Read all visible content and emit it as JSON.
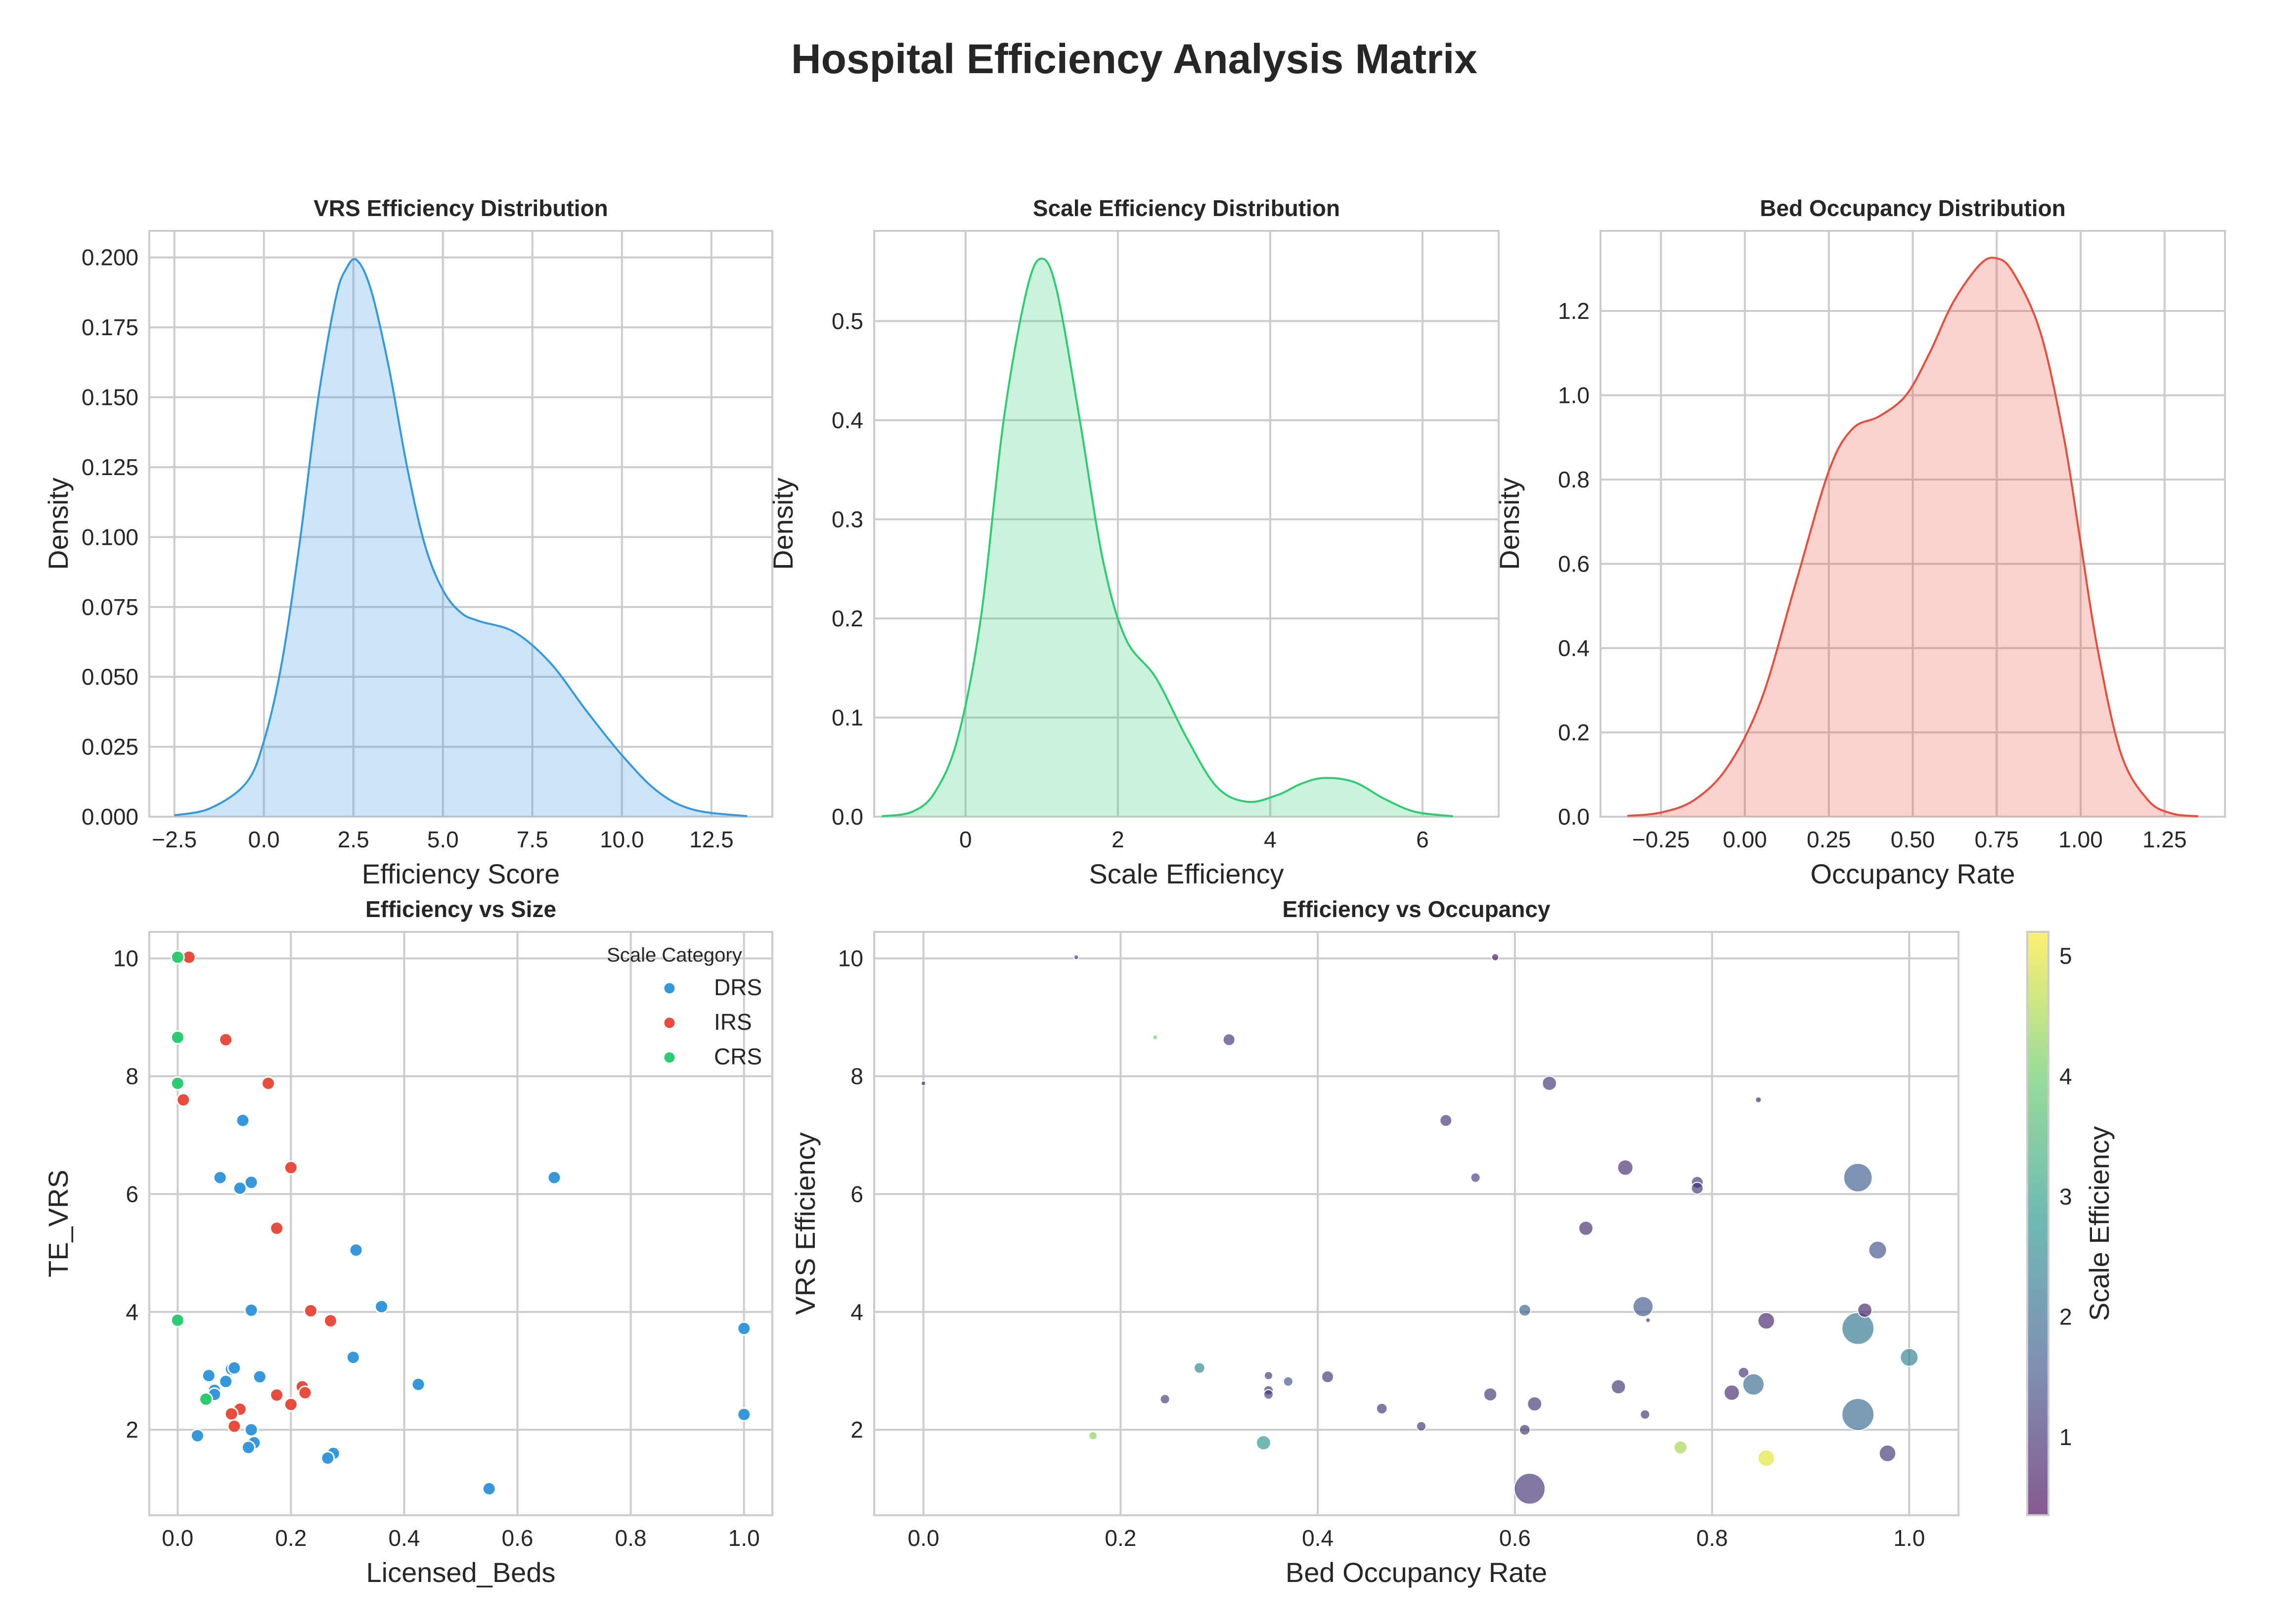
{
  "figure": {
    "title": "Hospital Efficiency Analysis Matrix"
  },
  "chart_data": [
    {
      "type": "area",
      "title": "VRS Efficiency Distribution",
      "xlabel": "Efficiency Score",
      "ylabel": "Density",
      "xlim": [
        -3.2,
        14.2
      ],
      "ylim": [
        0,
        0.2
      ],
      "xticks": [
        -2.5,
        0,
        2.5,
        5,
        7.5,
        10,
        12.5
      ],
      "xticklabels": [
        "−2.5",
        "0.0",
        "2.5",
        "5.0",
        "7.5",
        "10.0",
        "12.5"
      ],
      "yticks": [
        0,
        0.025,
        0.05,
        0.075,
        0.1,
        0.125,
        0.15,
        0.175,
        0.2
      ],
      "yticklabels": [
        "0.000",
        "0.025",
        "0.050",
        "0.075",
        "0.100",
        "0.125",
        "0.150",
        "0.175",
        "0.200"
      ],
      "color": "#3498db",
      "x": [
        -2.5,
        -1.5,
        -0.5,
        0,
        0.5,
        1,
        1.5,
        2,
        2.3,
        2.6,
        3,
        3.5,
        4,
        4.5,
        5,
        5.5,
        6,
        7,
        8,
        9,
        10,
        11,
        12,
        13.5
      ],
      "y": [
        0.0005,
        0.003,
        0.012,
        0.027,
        0.055,
        0.098,
        0.148,
        0.185,
        0.196,
        0.199,
        0.188,
        0.16,
        0.125,
        0.097,
        0.081,
        0.073,
        0.07,
        0.066,
        0.055,
        0.038,
        0.022,
        0.009,
        0.0025,
        0.0002
      ]
    },
    {
      "type": "area",
      "title": "Scale Efficiency Distribution",
      "xlabel": "Scale Efficiency",
      "ylabel": "Density",
      "xlim": [
        -1.2,
        7.0
      ],
      "ylim": [
        0,
        0.6
      ],
      "xticks": [
        0,
        2,
        4,
        6
      ],
      "xticklabels": [
        "0",
        "2",
        "4",
        "6"
      ],
      "yticks": [
        0,
        0.1,
        0.2,
        0.3,
        0.4,
        0.5
      ],
      "yticklabels": [
        "0.0",
        "0.1",
        "0.2",
        "0.3",
        "0.4",
        "0.5"
      ],
      "color": "#2ecc71",
      "x": [
        -1.1,
        -0.7,
        -0.4,
        -0.1,
        0.2,
        0.5,
        0.8,
        1.0,
        1.2,
        1.5,
        1.8,
        2.1,
        2.5,
        2.9,
        3.3,
        3.7,
        4.1,
        4.4,
        4.7,
        5.1,
        5.5,
        5.9,
        6.4
      ],
      "y": [
        0.0005,
        0.005,
        0.025,
        0.08,
        0.2,
        0.4,
        0.53,
        0.563,
        0.53,
        0.4,
        0.26,
        0.18,
        0.14,
        0.08,
        0.03,
        0.015,
        0.022,
        0.033,
        0.039,
        0.035,
        0.018,
        0.005,
        0.0005
      ]
    },
    {
      "type": "area",
      "title": "Bed Occupancy Distribution",
      "xlabel": "Occupancy Rate",
      "ylabel": "Density",
      "xlim": [
        -0.43,
        1.43
      ],
      "ylim": [
        0,
        1.4
      ],
      "xticks": [
        -0.25,
        0,
        0.25,
        0.5,
        0.75,
        1.0,
        1.25
      ],
      "xticklabels": [
        "−0.25",
        "0.00",
        "0.25",
        "0.50",
        "0.75",
        "1.00",
        "1.25"
      ],
      "yticks": [
        0,
        0.2,
        0.4,
        0.6,
        0.8,
        1.0,
        1.2
      ],
      "yticklabels": [
        "0.0",
        "0.2",
        "0.4",
        "0.6",
        "0.8",
        "1.0",
        "1.2"
      ],
      "color": "#e74c3c",
      "x": [
        -0.35,
        -0.25,
        -0.15,
        -0.05,
        0.05,
        0.15,
        0.25,
        0.32,
        0.4,
        0.48,
        0.55,
        0.62,
        0.7,
        0.75,
        0.8,
        0.88,
        0.95,
        1.0,
        1.05,
        1.12,
        1.2,
        1.27,
        1.35
      ],
      "y": [
        0.002,
        0.01,
        0.04,
        0.12,
        0.28,
        0.55,
        0.82,
        0.92,
        0.95,
        1.0,
        1.1,
        1.22,
        1.31,
        1.325,
        1.29,
        1.15,
        0.9,
        0.65,
        0.4,
        0.15,
        0.04,
        0.008,
        0.001
      ]
    },
    {
      "type": "scatter",
      "title": "Efficiency vs Size",
      "xlabel": "Licensed_Beds",
      "ylabel": "TE_VRS",
      "xlim": [
        -0.05,
        1.05
      ],
      "ylim": [
        0.55,
        10.45
      ],
      "xticks": [
        0,
        0.2,
        0.4,
        0.6,
        0.8,
        1.0
      ],
      "xticklabels": [
        "0.0",
        "0.2",
        "0.4",
        "0.6",
        "0.8",
        "1.0"
      ],
      "yticks": [
        2,
        4,
        6,
        8,
        10
      ],
      "yticklabels": [
        "2",
        "4",
        "6",
        "8",
        "10"
      ],
      "legend": {
        "title": "Scale Category",
        "position": "top-right",
        "labels": [
          "DRS",
          "IRS",
          "CRS"
        ]
      },
      "series": [
        {
          "name": "DRS",
          "color": "#3498db",
          "x": [
            0.665,
            0.315,
            0.36,
            0.115,
            0.075,
            0.11,
            0.13,
            0.13,
            0.31,
            0.425,
            0.055,
            0.065,
            0.065,
            0.085,
            0.095,
            0.1,
            0.145,
            0.035,
            0.13,
            0.135,
            0.125,
            0.275,
            0.265,
            0.55,
            1.0,
            1.0
          ],
          "y": [
            6.28,
            5.05,
            4.09,
            7.25,
            6.28,
            6.1,
            6.2,
            4.03,
            3.23,
            2.77,
            2.92,
            2.67,
            2.6,
            2.82,
            3.03,
            3.05,
            2.9,
            1.9,
            2.0,
            1.78,
            1.7,
            1.6,
            1.52,
            1.0,
            3.72,
            2.26
          ]
        },
        {
          "name": "IRS",
          "color": "#e74c3c",
          "x": [
            0.02,
            0.01,
            0.085,
            0.16,
            0.2,
            0.175,
            0.235,
            0.27,
            0.22,
            0.225,
            0.175,
            0.2,
            0.11,
            0.095,
            0.1
          ],
          "y": [
            10.02,
            7.6,
            8.62,
            7.88,
            6.45,
            5.42,
            4.02,
            3.85,
            2.73,
            2.63,
            2.59,
            2.43,
            2.35,
            2.27,
            2.06
          ]
        },
        {
          "name": "CRS",
          "color": "#2ecc71",
          "x": [
            0.0,
            0.0,
            0.0,
            0.0,
            0.05
          ],
          "y": [
            10.02,
            8.66,
            7.88,
            3.86,
            2.52
          ]
        }
      ]
    },
    {
      "type": "scatter",
      "title": "Efficiency vs Occupancy",
      "xlabel": "Bed Occupancy Rate",
      "ylabel": "VRS Efficiency",
      "xlim": [
        -0.05,
        1.05
      ],
      "ylim": [
        0.55,
        10.45
      ],
      "xticks": [
        0,
        0.2,
        0.4,
        0.6,
        0.8,
        1.0
      ],
      "xticklabels": [
        "0.0",
        "0.2",
        "0.4",
        "0.6",
        "0.8",
        "1.0"
      ],
      "yticks": [
        2,
        4,
        6,
        8,
        10
      ],
      "yticklabels": [
        "2",
        "4",
        "6",
        "8",
        "10"
      ],
      "colorbar": {
        "label": "Scale Efficiency",
        "min": 0.35,
        "max": 5.2,
        "ticks": [
          1,
          2,
          3,
          4,
          5
        ],
        "ticklabels": [
          "1",
          "2",
          "3",
          "4",
          "5"
        ],
        "colormap": "viridis"
      },
      "points": [
        {
          "x": 0.0,
          "y": 7.88,
          "c": 1.0,
          "s": 0.2
        },
        {
          "x": 0.155,
          "y": 10.02,
          "c": 1.0,
          "s": 0.2
        },
        {
          "x": 0.172,
          "y": 1.9,
          "c": 4.3,
          "s": 0.35
        },
        {
          "x": 0.235,
          "y": 8.66,
          "c": 4.0,
          "s": 0.2
        },
        {
          "x": 0.245,
          "y": 2.52,
          "c": 1.2,
          "s": 0.4
        },
        {
          "x": 0.28,
          "y": 3.05,
          "c": 2.5,
          "s": 0.45
        },
        {
          "x": 0.31,
          "y": 8.62,
          "c": 1.0,
          "s": 0.5
        },
        {
          "x": 0.345,
          "y": 1.78,
          "c": 2.8,
          "s": 0.6
        },
        {
          "x": 0.35,
          "y": 2.92,
          "c": 1.0,
          "s": 0.35
        },
        {
          "x": 0.35,
          "y": 2.67,
          "c": 1.0,
          "s": 0.4
        },
        {
          "x": 0.35,
          "y": 2.6,
          "c": 1.2,
          "s": 0.4
        },
        {
          "x": 0.37,
          "y": 2.82,
          "c": 1.5,
          "s": 0.4
        },
        {
          "x": 0.41,
          "y": 2.9,
          "c": 1.0,
          "s": 0.5
        },
        {
          "x": 0.465,
          "y": 2.36,
          "c": 1.0,
          "s": 0.45
        },
        {
          "x": 0.505,
          "y": 2.06,
          "c": 1.0,
          "s": 0.4
        },
        {
          "x": 0.53,
          "y": 7.25,
          "c": 1.0,
          "s": 0.5
        },
        {
          "x": 0.56,
          "y": 6.28,
          "c": 1.2,
          "s": 0.4
        },
        {
          "x": 0.575,
          "y": 2.6,
          "c": 1.0,
          "s": 0.55
        },
        {
          "x": 0.58,
          "y": 10.02,
          "c": 0.6,
          "s": 0.3
        },
        {
          "x": 0.61,
          "y": 4.03,
          "c": 1.8,
          "s": 0.5
        },
        {
          "x": 0.61,
          "y": 2.0,
          "c": 1.0,
          "s": 0.45
        },
        {
          "x": 0.615,
          "y": 1.0,
          "c": 1.0,
          "s": 1.3
        },
        {
          "x": 0.62,
          "y": 2.44,
          "c": 1.0,
          "s": 0.6
        },
        {
          "x": 0.635,
          "y": 7.88,
          "c": 1.0,
          "s": 0.6
        },
        {
          "x": 0.672,
          "y": 5.42,
          "c": 0.9,
          "s": 0.6
        },
        {
          "x": 0.705,
          "y": 2.73,
          "c": 1.0,
          "s": 0.6
        },
        {
          "x": 0.712,
          "y": 6.45,
          "c": 0.9,
          "s": 0.65
        },
        {
          "x": 0.73,
          "y": 4.09,
          "c": 1.6,
          "s": 0.85
        },
        {
          "x": 0.732,
          "y": 2.26,
          "c": 1.0,
          "s": 0.4
        },
        {
          "x": 0.735,
          "y": 3.86,
          "c": 1.0,
          "s": 0.2
        },
        {
          "x": 0.768,
          "y": 1.7,
          "c": 4.5,
          "s": 0.55
        },
        {
          "x": 0.785,
          "y": 6.2,
          "c": 1.0,
          "s": 0.5
        },
        {
          "x": 0.785,
          "y": 6.1,
          "c": 1.0,
          "s": 0.5
        },
        {
          "x": 0.82,
          "y": 2.63,
          "c": 0.9,
          "s": 0.65
        },
        {
          "x": 0.832,
          "y": 2.97,
          "c": 1.0,
          "s": 0.45
        },
        {
          "x": 0.842,
          "y": 2.77,
          "c": 2.0,
          "s": 0.9
        },
        {
          "x": 0.847,
          "y": 7.6,
          "c": 0.8,
          "s": 0.25
        },
        {
          "x": 0.855,
          "y": 3.85,
          "c": 0.8,
          "s": 0.7
        },
        {
          "x": 0.855,
          "y": 1.52,
          "c": 5.0,
          "s": 0.7
        },
        {
          "x": 0.948,
          "y": 6.28,
          "c": 1.7,
          "s": 1.2
        },
        {
          "x": 0.948,
          "y": 3.72,
          "c": 2.2,
          "s": 1.35
        },
        {
          "x": 0.948,
          "y": 2.26,
          "c": 2.0,
          "s": 1.35
        },
        {
          "x": 0.955,
          "y": 4.03,
          "c": 0.8,
          "s": 0.6
        },
        {
          "x": 0.968,
          "y": 5.05,
          "c": 1.5,
          "s": 0.75
        },
        {
          "x": 0.978,
          "y": 1.6,
          "c": 1.0,
          "s": 0.7
        },
        {
          "x": 1.0,
          "y": 3.23,
          "c": 2.4,
          "s": 0.75
        }
      ]
    }
  ]
}
